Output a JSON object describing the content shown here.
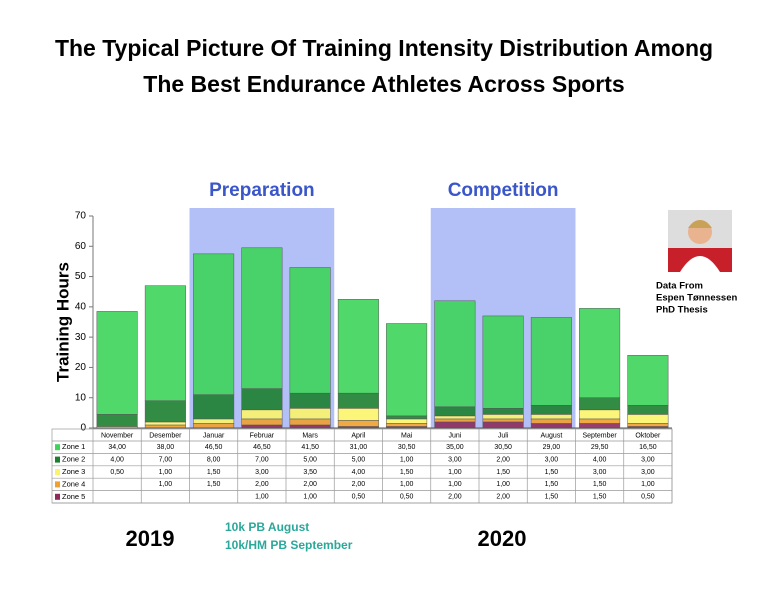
{
  "title": "The Typical Picture Of Training Intensity Distribution Among The Best Endurance Athletes Across Sports",
  "chart_data": {
    "type": "stacked_bar",
    "y_label": "Training Hours",
    "categories": [
      "November",
      "Desember",
      "Januar",
      "Februar",
      "Mars",
      "April",
      "Mai",
      "Juni",
      "Juli",
      "August",
      "September",
      "Oktober"
    ],
    "ylim": [
      0,
      70
    ],
    "yticks": [
      0,
      10,
      20,
      30,
      40,
      50,
      60,
      70
    ],
    "periods": [
      "Preparation",
      "Competition"
    ],
    "series": [
      {
        "name": "Zone 1",
        "color": "#3dd45a",
        "values": [
          34,
          38,
          46.5,
          46.5,
          41.5,
          31,
          30.5,
          35,
          30.5,
          29,
          29.5,
          16.5
        ],
        "value_labels": [
          "34,00",
          "38,00",
          "46,50",
          "46,50",
          "41,50",
          "31,00",
          "30,50",
          "35,00",
          "30,50",
          "29,00",
          "29,50",
          "16,50"
        ]
      },
      {
        "name": "Zone 2",
        "color": "#1c7f30",
        "values": [
          4,
          7,
          8,
          7,
          5,
          5,
          1,
          3,
          2,
          3,
          4,
          3
        ],
        "value_labels": [
          "4,00",
          "7,00",
          "8,00",
          "7,00",
          "5,00",
          "5,00",
          "1,00",
          "3,00",
          "2,00",
          "3,00",
          "4,00",
          "3,00"
        ]
      },
      {
        "name": "Zone 3",
        "color": "#fbf46a",
        "values": [
          0.5,
          1,
          1.5,
          3,
          3.5,
          4,
          1.5,
          1,
          1.5,
          1.5,
          3,
          3
        ],
        "value_labels": [
          "0,50",
          "1,00",
          "1,50",
          "3,00",
          "3,50",
          "4,00",
          "1,50",
          "1,00",
          "1,50",
          "1,50",
          "3,00",
          "3,00"
        ]
      },
      {
        "name": "Zone 4",
        "color": "#f0a030",
        "values": [
          null,
          1,
          1.5,
          2,
          2,
          2,
          1,
          1,
          1,
          1.5,
          1.5,
          1
        ],
        "value_labels": [
          null,
          "1,00",
          "1,50",
          "2,00",
          "2,00",
          "2,00",
          "1,00",
          "1,00",
          "1,00",
          "1,50",
          "1,50",
          "1,00"
        ]
      },
      {
        "name": "Zone 5",
        "color": "#8e2a5c",
        "values": [
          null,
          null,
          null,
          1,
          1,
          0.5,
          0.5,
          2,
          2,
          1.5,
          1.5,
          0.5
        ],
        "value_labels": [
          null,
          null,
          null,
          "1,00",
          "1,00",
          "0,50",
          "0,50",
          "2,00",
          "2,00",
          "1,50",
          "1,50",
          "0,50"
        ]
      }
    ]
  },
  "year_labels": [
    "2019",
    "2020"
  ],
  "annotations": [
    "10k PB August",
    "10k/HM PB September"
  ],
  "source_note": [
    "Data From",
    "Espen Tønnessen",
    "PhD Thesis"
  ]
}
